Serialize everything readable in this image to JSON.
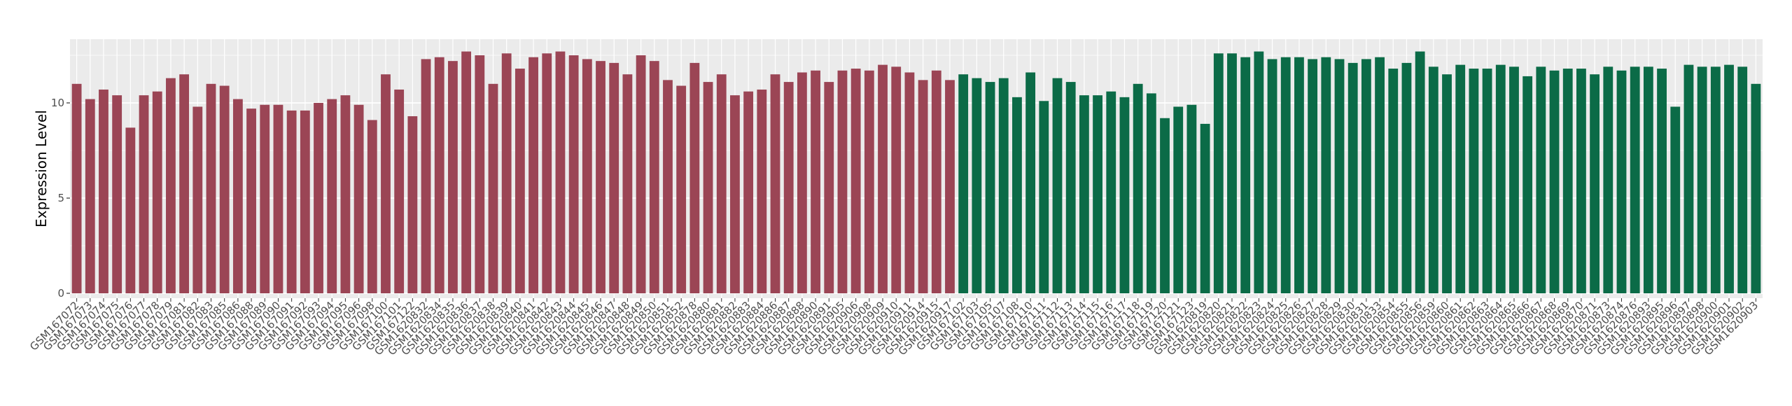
{
  "chart_data": {
    "type": "bar",
    "ylabel": "Expression Level",
    "ylim": [
      0,
      13.2
    ],
    "yticks": [
      0,
      5,
      10
    ],
    "grid": true,
    "legend": "none",
    "colors": {
      "group1": "#9b4555",
      "group2": "#0b6b47",
      "panel": "#ebebeb",
      "grid": "#ffffff"
    },
    "series": [
      {
        "color_key": "group1",
        "categories": [
          "GSM167072",
          "GSM167073",
          "GSM167074",
          "GSM167075",
          "GSM167076",
          "GSM167077",
          "GSM167078",
          "GSM167079",
          "GSM167081",
          "GSM167082",
          "GSM167083",
          "GSM167085",
          "GSM167086",
          "GSM167088",
          "GSM167089",
          "GSM167090",
          "GSM167091",
          "GSM167092",
          "GSM167093",
          "GSM167094",
          "GSM167095",
          "GSM167096",
          "GSM167098",
          "GSM167100",
          "GSM167101",
          "GSM167122",
          "GSM1620832",
          "GSM1620834",
          "GSM1620835",
          "GSM1620836",
          "GSM1620837",
          "GSM1620838",
          "GSM1620839",
          "GSM1620840",
          "GSM1620841",
          "GSM1620842",
          "GSM1620843",
          "GSM1620844",
          "GSM1620845",
          "GSM1620846",
          "GSM1620847",
          "GSM1620848",
          "GSM1620849",
          "GSM1620850",
          "GSM1620851",
          "GSM1620852",
          "GSM1620878",
          "GSM1620880",
          "GSM1620881",
          "GSM1620882",
          "GSM1620883",
          "GSM1620884",
          "GSM1620886",
          "GSM1620887",
          "GSM1620888",
          "GSM1620890",
          "GSM1620891",
          "GSM1620905",
          "GSM1620906",
          "GSM1620908",
          "GSM1620909",
          "GSM1620910",
          "GSM1620911",
          "GSM1620914",
          "GSM1620915",
          "GSM1620917"
        ],
        "values": [
          11.0,
          10.2,
          10.7,
          10.4,
          8.7,
          10.4,
          10.6,
          11.3,
          11.5,
          9.8,
          11.0,
          10.9,
          10.2,
          9.7,
          9.9,
          9.9,
          9.6,
          9.6,
          10.0,
          10.2,
          10.4,
          9.9,
          9.1,
          11.5,
          10.7,
          9.3,
          12.3,
          12.4,
          12.2,
          12.7,
          12.5,
          11.0,
          12.6,
          11.8,
          12.4,
          12.6,
          12.7,
          12.5,
          12.3,
          12.2,
          12.1,
          11.5,
          12.5,
          12.2,
          11.2,
          10.9,
          12.1,
          11.1,
          11.5,
          10.4,
          10.6,
          10.7,
          11.5,
          11.1,
          11.6,
          11.7,
          11.1,
          11.7,
          11.8,
          11.7,
          12.0,
          11.9,
          11.6,
          11.2,
          11.7,
          11.2
        ]
      },
      {
        "color_key": "group2",
        "categories": [
          "GSM167102",
          "GSM167103",
          "GSM167105",
          "GSM167107",
          "GSM167108",
          "GSM167110",
          "GSM167111",
          "GSM167112",
          "GSM167113",
          "GSM167114",
          "GSM167115",
          "GSM167116",
          "GSM167117",
          "GSM167118",
          "GSM167119",
          "GSM167120",
          "GSM167121",
          "GSM167123",
          "GSM1620819",
          "GSM1620820",
          "GSM1620821",
          "GSM1620822",
          "GSM1620823",
          "GSM1620824",
          "GSM1620825",
          "GSM1620826",
          "GSM1620827",
          "GSM1620828",
          "GSM1620829",
          "GSM1620830",
          "GSM1620831",
          "GSM1620833",
          "GSM1620854",
          "GSM1620855",
          "GSM1620856",
          "GSM1620859",
          "GSM1620860",
          "GSM1620861",
          "GSM1620862",
          "GSM1620863",
          "GSM1620864",
          "GSM1620865",
          "GSM1620866",
          "GSM1620867",
          "GSM1620868",
          "GSM1620869",
          "GSM1620870",
          "GSM1620871",
          "GSM1620873",
          "GSM1620874",
          "GSM1620876",
          "GSM1620893",
          "GSM1620895",
          "GSM1620896",
          "GSM1620897",
          "GSM1620898",
          "GSM1620900",
          "GSM1620901",
          "GSM1620902",
          "GSM1620903"
        ],
        "values": [
          11.5,
          11.3,
          11.1,
          11.3,
          10.3,
          11.6,
          10.1,
          11.3,
          11.1,
          10.4,
          10.4,
          10.6,
          10.3,
          11.0,
          10.5,
          9.2,
          9.8,
          9.9,
          8.9,
          12.6,
          12.6,
          12.4,
          12.7,
          12.3,
          12.4,
          12.4,
          12.3,
          12.4,
          12.3,
          12.1,
          12.3,
          12.4,
          11.8,
          12.1,
          12.7,
          11.9,
          11.5,
          12.0,
          11.8,
          11.8,
          12.0,
          11.9,
          11.4,
          11.9,
          11.7,
          11.8,
          11.8,
          11.5,
          11.9,
          11.7,
          11.9,
          11.9,
          11.8,
          9.8,
          12.0,
          11.9,
          11.9,
          12.0,
          11.9,
          11.0
        ]
      }
    ]
  }
}
